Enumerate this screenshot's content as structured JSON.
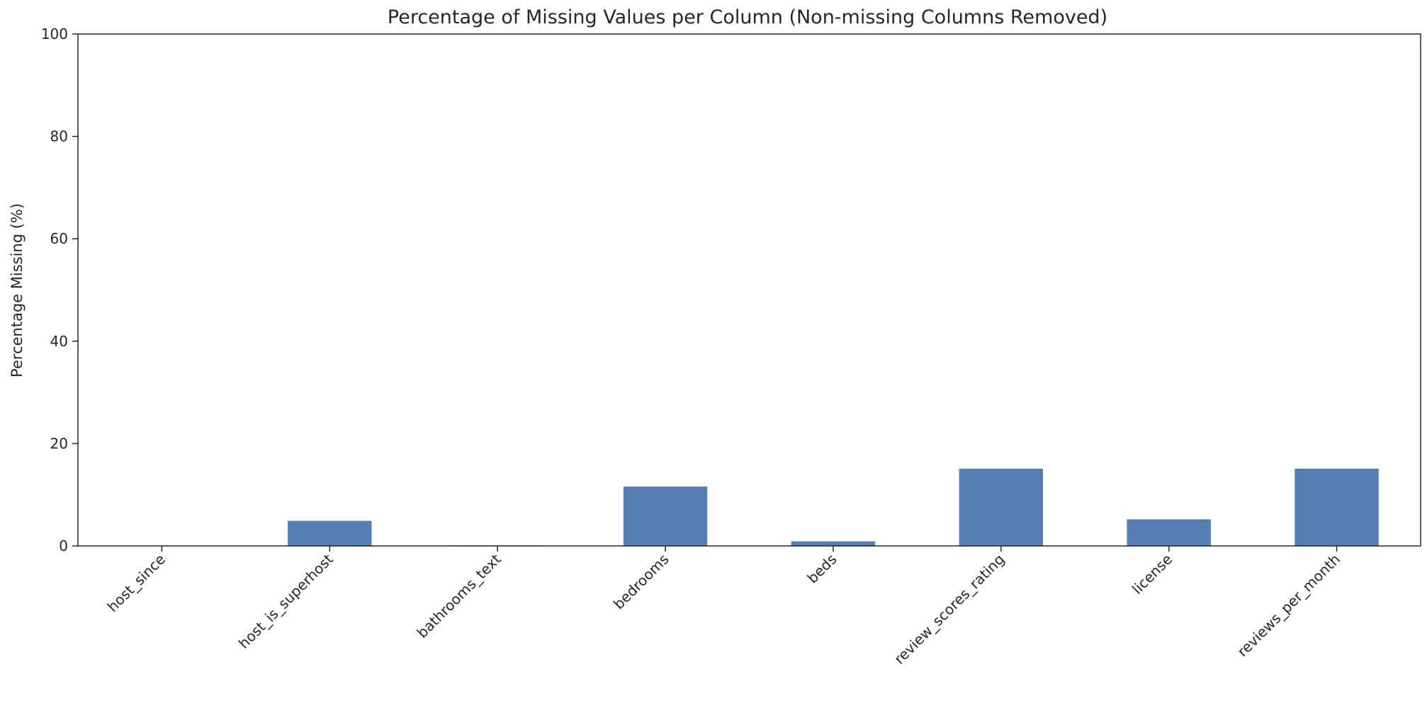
{
  "chart_data": {
    "type": "bar",
    "title": "Percentage of Missing Values per Column (Non-missing Columns Removed)",
    "xlabel": "",
    "ylabel": "Percentage Missing (%)",
    "ylim": [
      0,
      100
    ],
    "yticks": [
      0,
      20,
      40,
      60,
      80,
      100
    ],
    "grid": false,
    "legend": "none",
    "bar_color": "#557fb2",
    "categories": [
      "host_since",
      "host_is_superhost",
      "bathrooms_text",
      "bedrooms",
      "beds",
      "review_scores_rating",
      "license",
      "reviews_per_month"
    ],
    "values": [
      0.02,
      4.9,
      0.1,
      11.6,
      0.9,
      15.1,
      5.2,
      15.1
    ]
  }
}
